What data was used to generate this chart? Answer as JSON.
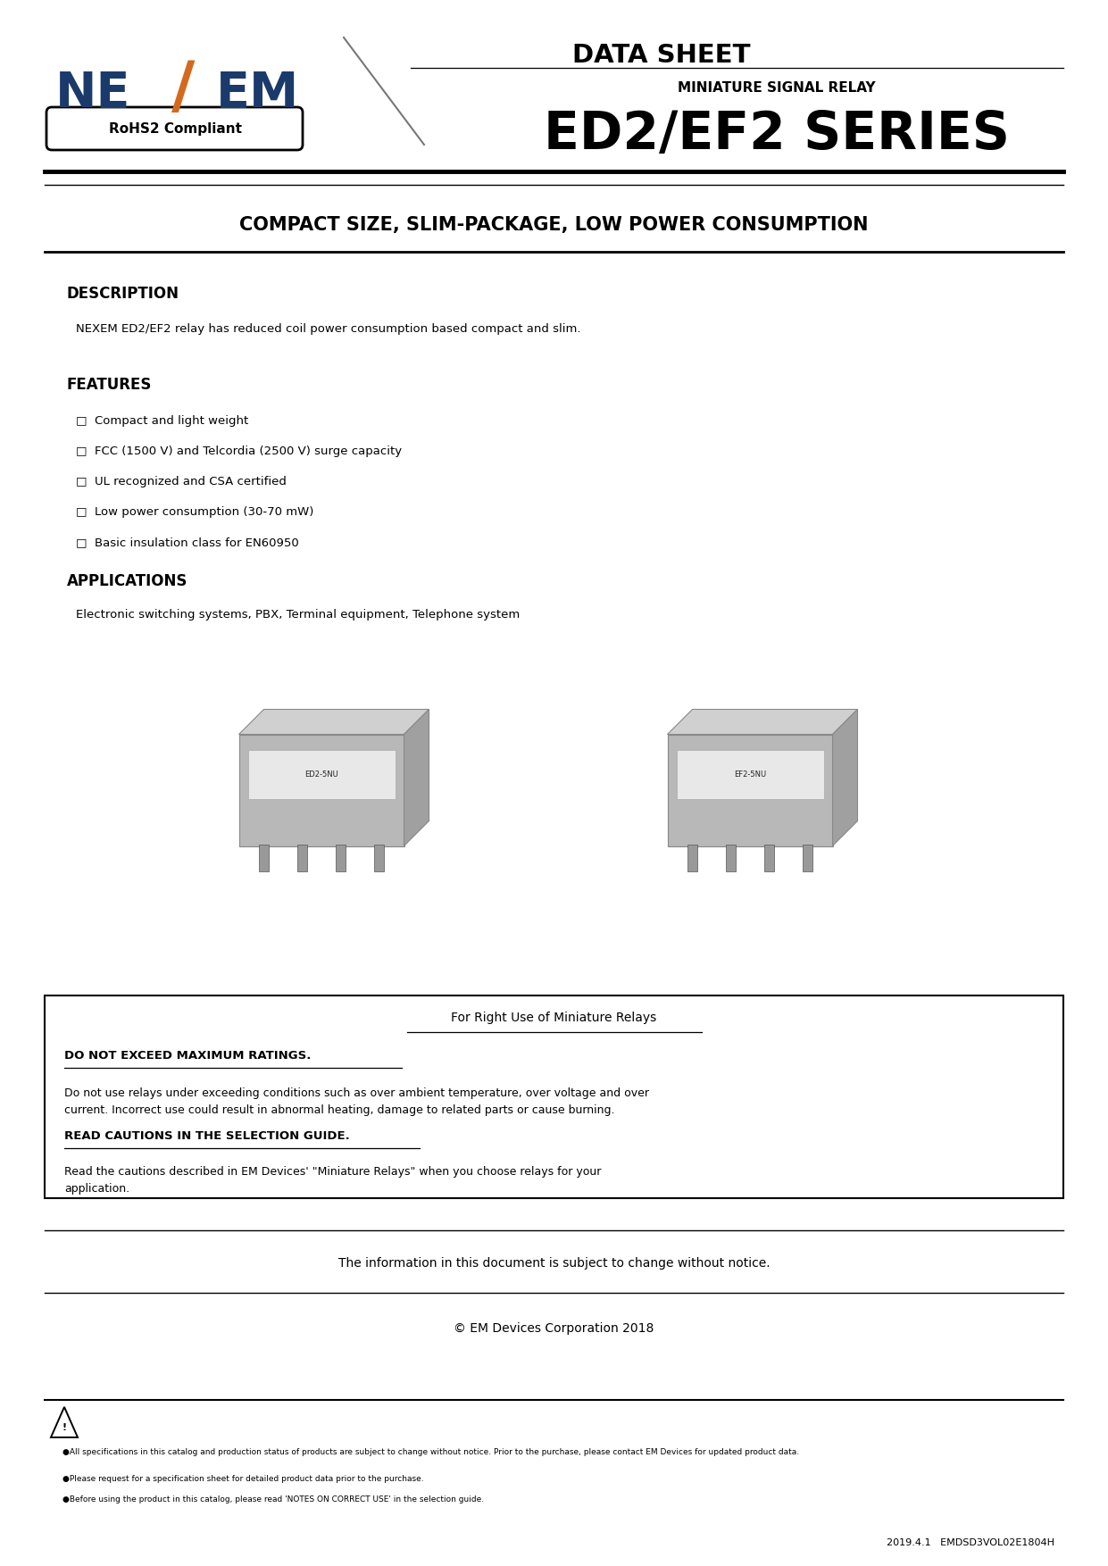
{
  "page_width": 12.41,
  "page_height": 17.54,
  "dpi": 100,
  "bg_color": "#ffffff",
  "text_color": "#000000",
  "header": {
    "data_sheet_text": "DATA SHEET",
    "logo_ne_color": "#1a3a6b",
    "logo_slash_color": "#d4691e",
    "rohs_text": "RoHS2 Compliant",
    "miniature_text": "MINIATURE SIGNAL RELAY",
    "series_text": "ED2/EF2 SERIES"
  },
  "tagline": "COMPACT SIZE, SLIM-PACKAGE, LOW POWER CONSUMPTION",
  "description_title": "DESCRIPTION",
  "description_text": "NEXEM ED2/EF2 relay has reduced coil power consumption based compact and slim.",
  "features_title": "FEATURES",
  "features_items": [
    "Compact and light weight",
    "FCC (1500 V) and Telcordia (2500 V) surge capacity",
    "UL recognized and CSA certified",
    "Low power consumption (30-70 mW)",
    "Basic insulation class for EN60950"
  ],
  "applications_title": "APPLICATIONS",
  "applications_text": "Electronic switching systems, PBX, Terminal equipment, Telephone system",
  "warning_box_title": "For Right Use of Miniature Relays",
  "warning_section1_title": "DO NOT EXCEED MAXIMUM RATINGS.",
  "warning_section1_text": "Do not use relays under exceeding conditions such as over ambient temperature, over voltage and over\ncurrent. Incorrect use could result in abnormal heating, damage to related parts or cause burning.",
  "warning_section2_title": "READ CAUTIONS IN THE SELECTION GUIDE.",
  "warning_section2_text": "Read the cautions described in EM Devices' \"Miniature Relays\" when you choose relays for your\napplication.",
  "notice_text": "The information in this document is subject to change without notice.",
  "copyright_text": "© EM Devices Corporation 2018",
  "footer_bullet1": "●All specifications in this catalog and production status of products are subject to change without notice. Prior to the purchase, please contact EM Devices for updated product data.",
  "footer_bullet2": "●Please request for a specification sheet for detailed product data prior to the purchase.",
  "footer_bullet3": "●Before using the product in this catalog, please read 'NOTES ON CORRECT USE' in the selection guide.",
  "footer_doc_id": "2019.4.1   EMDSD3VOL02E1804H"
}
